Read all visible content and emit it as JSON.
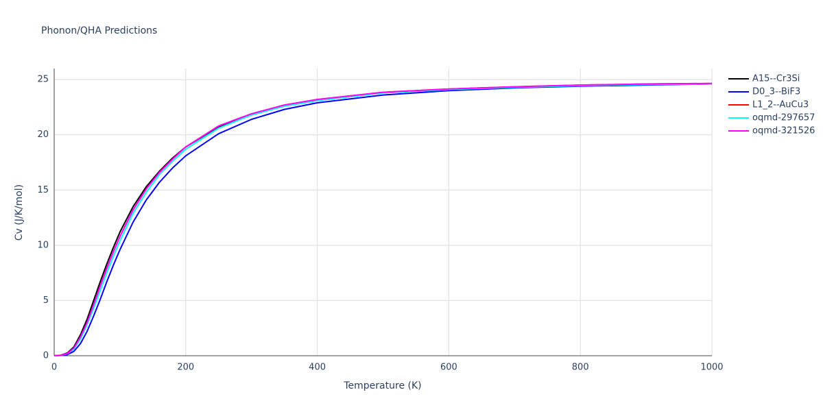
{
  "chart_data": {
    "type": "line",
    "title": "Phonon/QHA Predictions",
    "x_label": "Temperature (K)",
    "y_label": "Cv (J/K/mol)",
    "x": [
      0,
      10,
      20,
      30,
      40,
      50,
      60,
      70,
      80,
      90,
      100,
      120,
      140,
      160,
      180,
      200,
      250,
      300,
      350,
      400,
      500,
      600,
      700,
      800,
      900,
      1000
    ],
    "series": [
      {
        "name": "A15--Cr3Si",
        "color": "#000000",
        "values": [
          0,
          0.05,
          0.25,
          0.8,
          1.9,
          3.3,
          5.0,
          6.7,
          8.3,
          9.8,
          11.2,
          13.5,
          15.3,
          16.7,
          17.9,
          18.9,
          20.7,
          21.8,
          22.6,
          23.1,
          23.8,
          24.1,
          24.3,
          24.45,
          24.55,
          24.6
        ]
      },
      {
        "name": "D0_3--BiF3",
        "color": "#0000ff",
        "values": [
          0,
          0.02,
          0.1,
          0.4,
          1.1,
          2.2,
          3.6,
          5.1,
          6.7,
          8.2,
          9.6,
          12.1,
          14.1,
          15.7,
          17.0,
          18.1,
          20.1,
          21.4,
          22.3,
          22.9,
          23.6,
          24.0,
          24.25,
          24.4,
          24.5,
          24.6
        ]
      },
      {
        "name": "L1_2--AuCu3",
        "color": "#ff0000",
        "values": [
          0,
          0.04,
          0.2,
          0.7,
          1.7,
          3.0,
          4.6,
          6.3,
          7.9,
          9.4,
          10.8,
          13.2,
          15.1,
          16.6,
          17.8,
          18.9,
          20.8,
          21.9,
          22.7,
          23.2,
          23.85,
          24.15,
          24.35,
          24.5,
          24.6,
          24.65
        ]
      },
      {
        "name": "oqmd-297657",
        "color": "#00ffff",
        "values": [
          0,
          0.03,
          0.18,
          0.6,
          1.5,
          2.8,
          4.3,
          5.9,
          7.5,
          9.0,
          10.4,
          12.9,
          14.8,
          16.4,
          17.6,
          18.7,
          20.6,
          21.8,
          22.6,
          23.1,
          23.8,
          24.1,
          24.3,
          24.45,
          24.55,
          24.6
        ]
      },
      {
        "name": "oqmd-321526",
        "color": "#ff00ff",
        "values": [
          0,
          0.04,
          0.2,
          0.7,
          1.7,
          3.0,
          4.6,
          6.3,
          7.9,
          9.4,
          10.8,
          13.2,
          15.1,
          16.6,
          17.8,
          18.9,
          20.8,
          21.9,
          22.7,
          23.2,
          23.85,
          24.15,
          24.35,
          24.5,
          24.6,
          24.65
        ]
      }
    ],
    "xlim": [
      0,
      1000
    ],
    "xticks": [
      0,
      200,
      400,
      600,
      800,
      1000
    ],
    "ylim": [
      0,
      26
    ],
    "yticks": [
      0,
      5,
      10,
      15,
      20,
      25
    ],
    "grid": true,
    "legend": "right"
  }
}
